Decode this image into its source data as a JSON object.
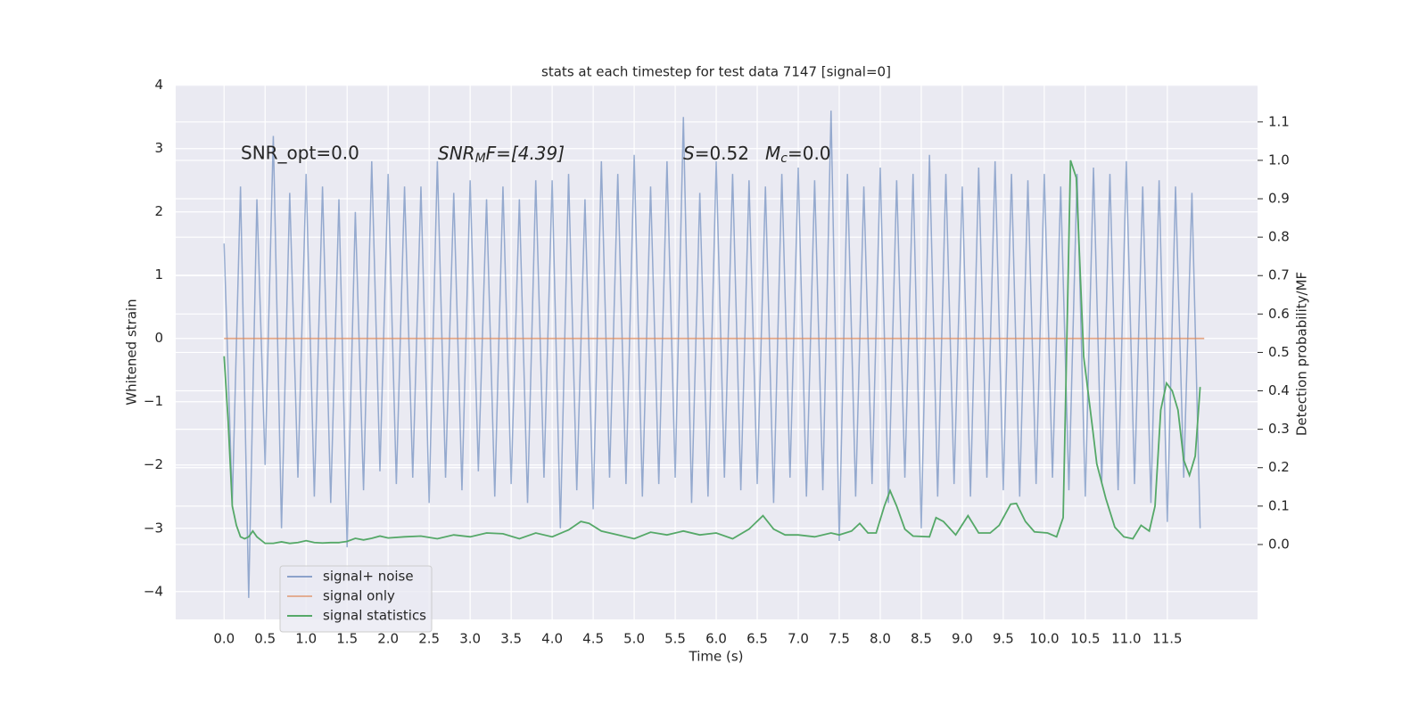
{
  "chart_data": {
    "type": "line",
    "title": "stats at each timestep for test data 7147 [signal=0]",
    "xlabel": "Time (s)",
    "ylabel": "Whitened strain",
    "y2label": "Detection probability/MF",
    "xlim": [
      -0.59,
      12.6
    ],
    "ylim": [
      -4.44,
      4.01
    ],
    "y2lim": [
      -0.195,
      1.197
    ],
    "xticks": [
      {
        "value": 0,
        "label": "0.0"
      },
      0.5,
      {
        "value": 1,
        "label": "1.0"
      },
      1.5,
      {
        "value": 2,
        "label": "2.0"
      },
      2.5,
      {
        "value": 3,
        "label": "3.0"
      },
      3.5,
      {
        "value": 4,
        "label": "4.0"
      },
      4.5,
      {
        "value": 5,
        "label": "5.0"
      },
      5.5,
      {
        "value": 6,
        "label": "6.0"
      },
      6.5,
      {
        "value": 7,
        "label": "7.0"
      },
      7.5,
      {
        "value": 8,
        "label": "8.0"
      },
      8.5,
      {
        "value": 9,
        "label": "9.0"
      },
      9.5,
      {
        "value": 10,
        "label": "10.0"
      },
      10.5,
      {
        "value": 11,
        "label": "11.0"
      },
      11.5
    ],
    "yticks": [
      {
        "value": -4,
        "label": "−4"
      },
      {
        "value": -3,
        "label": "−3"
      },
      {
        "value": -2,
        "label": "−2"
      },
      {
        "value": -1,
        "label": "−1"
      },
      0,
      1,
      2,
      3,
      4
    ],
    "y2ticks": [
      {
        "value": 0,
        "label": "0.0"
      },
      0.1,
      0.2,
      0.3,
      0.4,
      0.5,
      0.6,
      0.7,
      0.8,
      0.9,
      {
        "value": 1,
        "label": "1.0"
      },
      1.1
    ],
    "grid": true,
    "legend": "lower left",
    "annotations": [
      {
        "text": "SNR_opt=0.0"
      },
      {
        "main": "SNR",
        "sub": "M",
        "rest": "F=[4.39]"
      },
      {
        "main": "S",
        "rest": "=0.52"
      },
      {
        "main": "M",
        "sub": "c",
        "rest": "=0.0"
      }
    ],
    "series": [
      {
        "name": "signal+ noise",
        "color": "#4c72b0",
        "x": [
          0.0,
          0.1,
          0.2,
          0.3,
          0.4,
          0.5,
          0.6,
          0.7,
          0.8,
          0.9,
          1.0,
          1.1,
          1.2,
          1.3,
          1.4,
          1.5,
          1.6,
          1.7,
          1.8,
          1.9,
          2.0,
          2.1,
          2.2,
          2.3,
          2.4,
          2.5,
          2.6,
          2.7,
          2.8,
          2.9,
          3.0,
          3.1,
          3.2,
          3.3,
          3.4,
          3.5,
          3.6,
          3.7,
          3.8,
          3.9,
          4.0,
          4.1,
          4.2,
          4.3,
          4.4,
          4.5,
          4.6,
          4.7,
          4.8,
          4.9,
          5.0,
          5.1,
          5.2,
          5.3,
          5.4,
          5.5,
          5.6,
          5.7,
          5.8,
          5.9,
          6.0,
          6.1,
          6.2,
          6.3,
          6.4,
          6.5,
          6.6,
          6.7,
          6.8,
          6.9,
          7.0,
          7.1,
          7.2,
          7.3,
          7.4,
          7.5,
          7.6,
          7.7,
          7.8,
          7.9,
          8.0,
          8.1,
          8.2,
          8.3,
          8.4,
          8.5,
          8.6,
          8.7,
          8.8,
          8.9,
          9.0,
          9.1,
          9.2,
          9.3,
          9.4,
          9.5,
          9.6,
          9.7,
          9.8,
          9.9,
          10.0,
          10.1,
          10.2,
          10.3,
          10.4,
          10.5,
          10.6,
          10.7,
          10.8,
          10.9,
          11.0,
          11.1,
          11.2,
          11.3,
          11.4,
          11.5,
          11.6,
          11.7,
          11.8,
          11.9
        ],
        "values": [
          1.5,
          -2.6,
          2.4,
          -4.1,
          2.2,
          -2.0,
          3.2,
          -3.0,
          2.3,
          -2.2,
          2.6,
          -2.5,
          2.4,
          -2.6,
          2.2,
          -3.3,
          2.0,
          -2.4,
          2.8,
          -2.1,
          2.6,
          -2.3,
          2.4,
          -2.2,
          2.4,
          -2.6,
          2.8,
          -2.2,
          2.3,
          -2.4,
          2.5,
          -2.1,
          2.2,
          -2.5,
          2.4,
          -2.3,
          2.2,
          -2.6,
          2.5,
          -2.2,
          2.5,
          -3.0,
          2.6,
          -2.4,
          2.2,
          -2.7,
          2.8,
          -2.2,
          2.6,
          -2.3,
          2.9,
          -2.5,
          2.4,
          -2.3,
          2.8,
          -2.2,
          3.5,
          -2.6,
          2.3,
          -2.5,
          2.8,
          -2.2,
          2.6,
          -2.4,
          2.5,
          -2.3,
          2.4,
          -2.6,
          2.6,
          -2.2,
          2.7,
          -2.5,
          2.5,
          -2.4,
          3.6,
          -3.2,
          2.6,
          -2.5,
          2.4,
          -2.3,
          2.7,
          -2.6,
          2.5,
          -2.2,
          2.6,
          -3.0,
          2.9,
          -2.5,
          2.6,
          -2.3,
          2.4,
          -2.5,
          2.7,
          -2.2,
          2.8,
          -2.4,
          2.6,
          -2.5,
          2.5,
          -2.3,
          2.6,
          -2.2,
          2.4,
          -2.4,
          2.6,
          -2.5,
          2.7,
          -2.3,
          2.6,
          -2.4,
          2.8,
          -2.3,
          2.4,
          -2.6,
          2.5,
          -2.9,
          2.4,
          -2.2,
          2.3,
          -3.0
        ]
      },
      {
        "name": "signal only",
        "color": "#dd8452",
        "x": [
          0.0,
          11.95
        ],
        "values": [
          0,
          0
        ]
      },
      {
        "name": "signal statistics",
        "color": "#55a868",
        "axis": "y2",
        "x": [
          0.0,
          0.05,
          0.1,
          0.15,
          0.2,
          0.25,
          0.3,
          0.35,
          0.4,
          0.5,
          0.6,
          0.7,
          0.8,
          0.9,
          1.0,
          1.1,
          1.2,
          1.3,
          1.4,
          1.5,
          1.6,
          1.7,
          1.8,
          1.9,
          2.0,
          2.2,
          2.4,
          2.6,
          2.8,
          3.0,
          3.2,
          3.4,
          3.6,
          3.8,
          4.0,
          4.2,
          4.35,
          4.45,
          4.6,
          4.8,
          5.0,
          5.2,
          5.4,
          5.6,
          5.8,
          6.0,
          6.2,
          6.4,
          6.57,
          6.7,
          6.84,
          7.0,
          7.2,
          7.4,
          7.5,
          7.65,
          7.75,
          7.85,
          7.95,
          8.05,
          8.12,
          8.2,
          8.3,
          8.4,
          8.6,
          8.68,
          8.77,
          8.92,
          9.07,
          9.2,
          9.34,
          9.45,
          9.59,
          9.66,
          9.77,
          9.88,
          10.04,
          10.15,
          10.23,
          10.32,
          10.39,
          10.48,
          10.59,
          10.64,
          10.75,
          10.86,
          10.97,
          11.08,
          11.18,
          11.28,
          11.35,
          11.42,
          11.49,
          11.56,
          11.63,
          11.7,
          11.77,
          11.84,
          11.9
        ],
        "values": [
          0.49,
          0.32,
          0.1,
          0.05,
          0.02,
          0.015,
          0.02,
          0.035,
          0.02,
          0.003,
          0.003,
          0.007,
          0.003,
          0.005,
          0.01,
          0.005,
          0.004,
          0.005,
          0.005,
          0.008,
          0.016,
          0.012,
          0.016,
          0.022,
          0.017,
          0.02,
          0.022,
          0.015,
          0.025,
          0.02,
          0.03,
          0.028,
          0.015,
          0.03,
          0.02,
          0.038,
          0.06,
          0.055,
          0.035,
          0.025,
          0.015,
          0.032,
          0.025,
          0.035,
          0.025,
          0.03,
          0.015,
          0.04,
          0.075,
          0.04,
          0.025,
          0.025,
          0.02,
          0.03,
          0.025,
          0.035,
          0.055,
          0.03,
          0.03,
          0.1,
          0.14,
          0.1,
          0.04,
          0.022,
          0.02,
          0.07,
          0.06,
          0.025,
          0.075,
          0.03,
          0.03,
          0.05,
          0.105,
          0.107,
          0.06,
          0.033,
          0.03,
          0.02,
          0.07,
          1.0,
          0.955,
          0.49,
          0.3,
          0.21,
          0.12,
          0.045,
          0.02,
          0.015,
          0.05,
          0.035,
          0.1,
          0.35,
          0.42,
          0.4,
          0.35,
          0.22,
          0.18,
          0.23,
          0.41
        ]
      }
    ]
  }
}
